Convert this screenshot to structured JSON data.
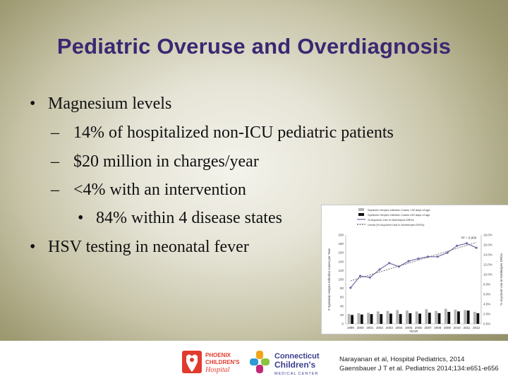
{
  "slide": {
    "title": "Pediatric Overuse and Overdiagnosis",
    "bullets": [
      {
        "level": 1,
        "mark": "•",
        "text": "Magnesium levels"
      },
      {
        "level": 2,
        "mark": "–",
        "text": "14% of hospitalized non-ICU pediatric patients"
      },
      {
        "level": 2,
        "mark": "–",
        "text": "$20 million in charges/year"
      },
      {
        "level": 2,
        "mark": "–",
        "text": "<4% with an intervention"
      },
      {
        "level": 3,
        "mark": "•",
        "text": "84% within 4 disease states"
      },
      {
        "level": 1,
        "mark": "•",
        "text": "HSV testing in neonatal fever"
      }
    ],
    "citations": [
      "Narayanan et al, Hospital Pediatrics, 2014",
      "Gaensbauer J T et al. Pediatrics 2014;134:e651-e656"
    ],
    "logos": {
      "phoenix": {
        "line1": "PHOENIX",
        "line2": "CHILDREN'S",
        "line3": "Hospital"
      },
      "connecticut": {
        "line1": "Connecticut",
        "line2": "Children's",
        "line3": "MEDICAL CENTER"
      }
    }
  },
  "chart_data": {
    "type": "bar",
    "categories": [
      "1999",
      "2000",
      "2001",
      "2002",
      "2003",
      "2004",
      "2005",
      "2006",
      "2007",
      "2008",
      "2009",
      "2010",
      "2011",
      "2012"
    ],
    "xlabel": "YEAR",
    "ylabel_left": "# Systemic Herpes Infection Cases per Year",
    "ylabel_right": "% Acyclovir Use in Nonherpes DRGs",
    "ylim_left": [
      0,
      200
    ],
    "ylim_right": [
      0,
      18
    ],
    "yticks_left": [
      "0",
      "20",
      "40",
      "60",
      "80",
      "100",
      "120",
      "140",
      "160",
      "180",
      "200"
    ],
    "yticks_right": [
      "0.0%",
      "2.0%",
      "4.0%",
      "6.0%",
      "8.0%",
      "10.0%",
      "12.0%",
      "14.0%",
      "16.0%",
      "18.0%"
    ],
    "legend": [
      "Systemic Herpes Infection Cases <30 days of age",
      "Systemic Herpes Infection Cases ≥30 days of age",
      "% Acyclovir Use in Nonherpes DRGs",
      "Linear (% Acyclovir Use in Nonherpes DRGs)"
    ],
    "annotation": "R² = 0.909",
    "series": [
      {
        "name": "Systemic Herpes Infection Cases <30 days of age",
        "color": "#b5b5b5",
        "values": [
          22,
          24,
          25,
          28,
          29,
          31,
          30,
          28,
          33,
          29,
          34,
          32,
          31,
          27
        ]
      },
      {
        "name": "Systemic Herpes Infection Cases ≥30 days of age",
        "color": "#111111",
        "values": [
          20,
          21,
          22,
          22,
          23,
          22,
          24,
          23,
          25,
          24,
          27,
          28,
          30,
          24
        ]
      },
      {
        "name": "% Acyclovir Use in Nonherpes DRGs",
        "color": "#7a6aa8",
        "values": [
          7.3,
          9.7,
          9.4,
          11.0,
          12.3,
          11.6,
          12.7,
          13.2,
          13.6,
          13.6,
          14.4,
          15.8,
          16.3,
          15.4
        ]
      }
    ]
  }
}
